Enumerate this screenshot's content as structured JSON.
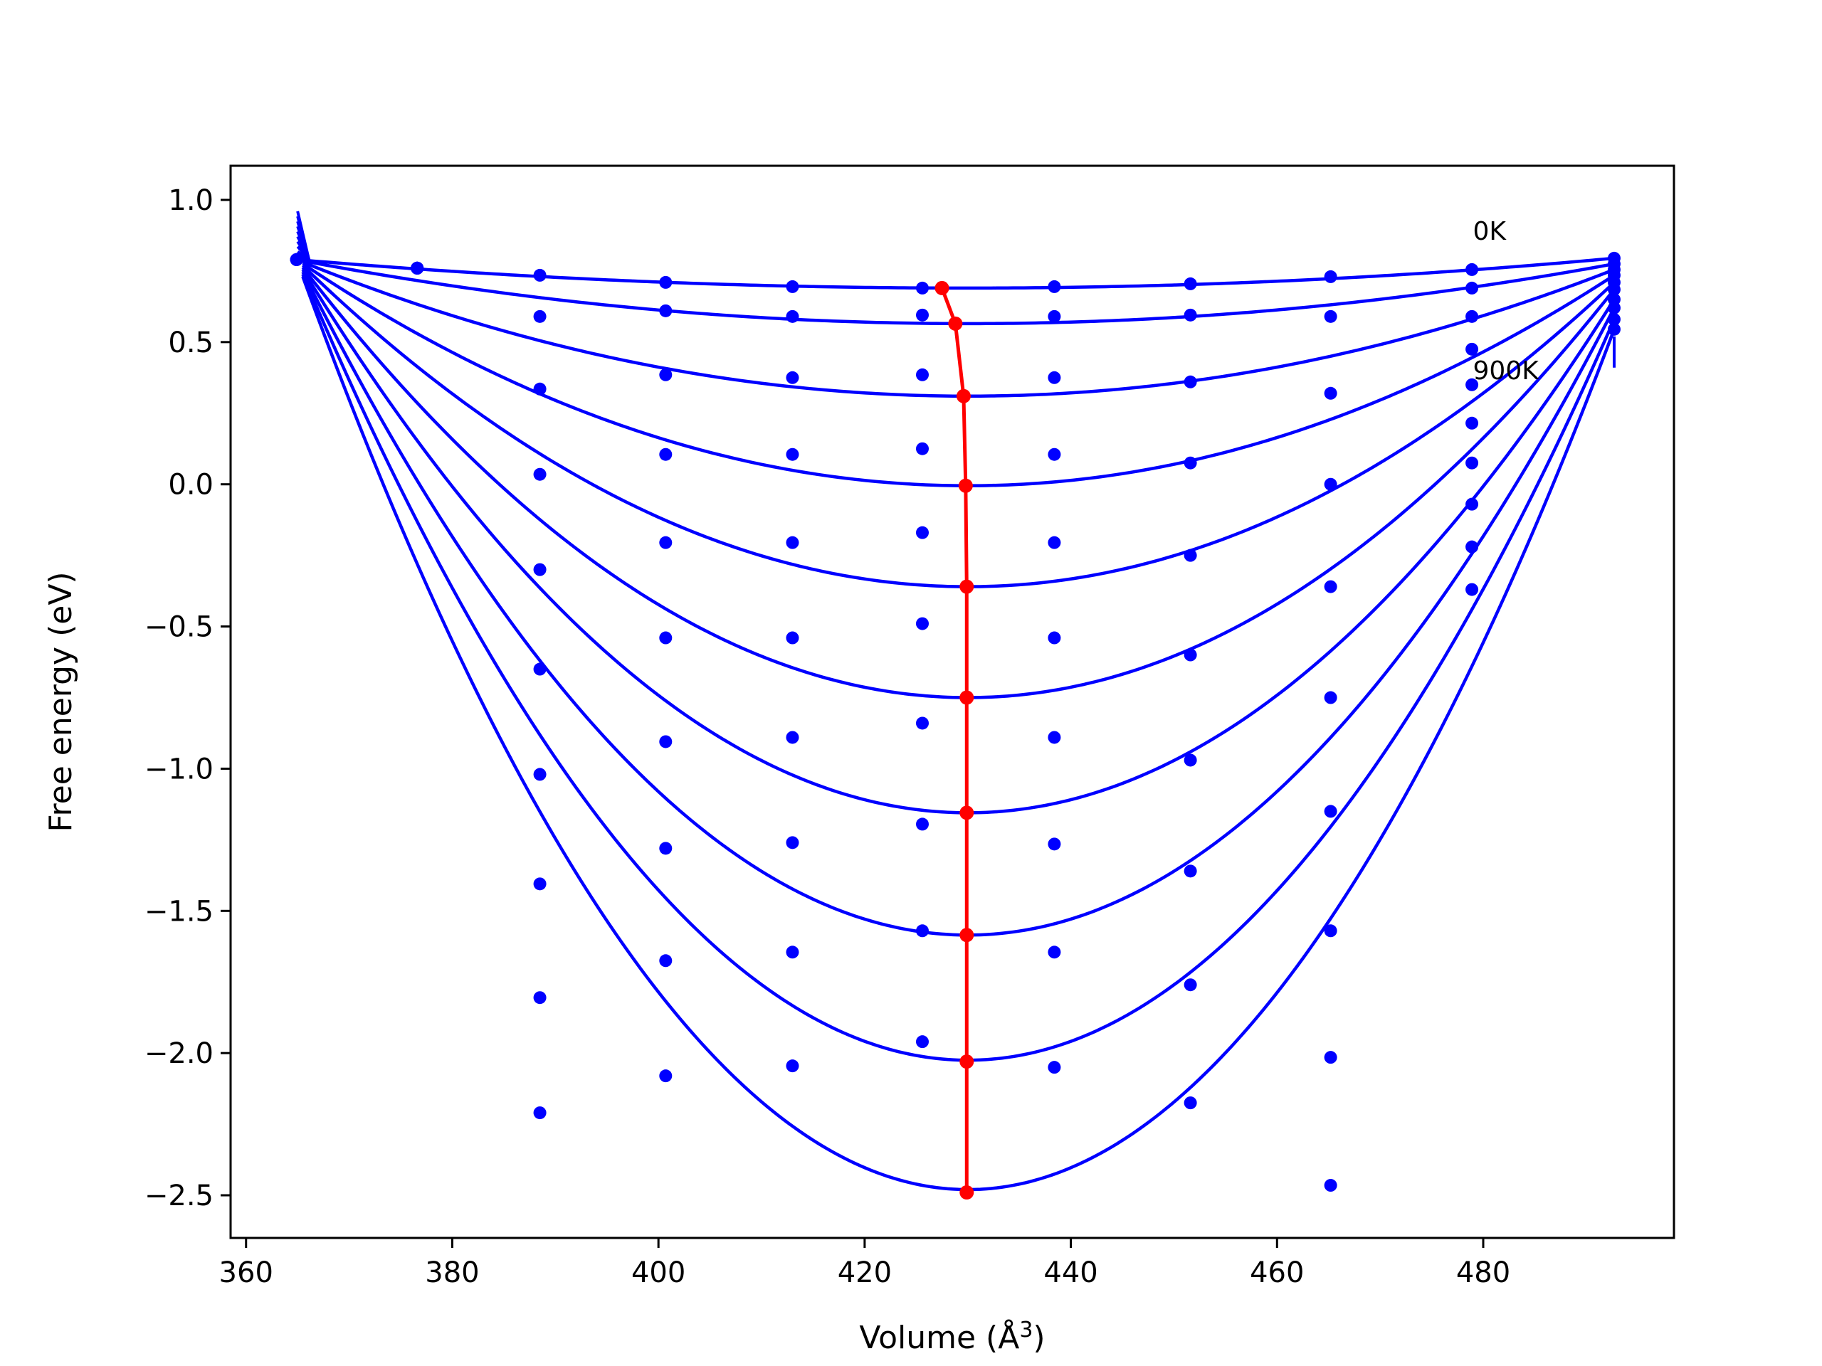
{
  "chart_data": {
    "type": "scatter",
    "xlabel": "Volume (Å",
    "xlabel_sup": "3",
    "xlabel_close": ")",
    "ylabel": "Free energy (eV)",
    "xlim": [
      358.5,
      498.5
    ],
    "ylim": [
      -2.65,
      1.12
    ],
    "xticks": [
      360,
      380,
      400,
      420,
      440,
      460,
      480
    ],
    "yticks": [
      1.0,
      0.5,
      0.0,
      -0.5,
      -1.0,
      -1.5,
      -2.0,
      -2.5
    ],
    "ytick_labels": [
      "1.0",
      "0.5",
      "0.0",
      "−0.5",
      "−1.0",
      "−1.5",
      "−2.0",
      "−2.5"
    ],
    "grid": false,
    "colors": {
      "curves": "#0000ff",
      "minimum_path": "#ff0000",
      "frame": "#000000"
    },
    "annotations": [
      {
        "text": "0K",
        "x": 479,
        "y": 0.86
      },
      {
        "text": "900K",
        "x": 479,
        "y": 0.37
      }
    ],
    "volumes": [
      364.9,
      376.6,
      388.5,
      400.7,
      413.0,
      425.6,
      438.4,
      451.6,
      465.2,
      478.9,
      492.7
    ],
    "series": [
      {
        "values": [
          0.79,
          0.76,
          0.735,
          0.71,
          0.695,
          0.69,
          0.695,
          0.705,
          0.73,
          0.755,
          0.795
        ],
        "fit_min": [
          430.0,
          0.69
        ],
        "fit_min_point": [
          427.5,
          0.69
        ]
      },
      {
        "values": [
          0.79,
          0.76,
          0.59,
          0.61,
          0.59,
          0.595,
          0.59,
          0.595,
          0.59,
          0.69,
          0.775
        ],
        "fit_min": [
          430.0,
          0.565
        ],
        "fit_min_point": [
          428.8,
          0.565
        ]
      },
      {
        "values": [
          0.79,
          0.76,
          0.335,
          0.385,
          0.375,
          0.385,
          0.375,
          0.36,
          0.32,
          0.59,
          0.755
        ],
        "fit_min": [
          430.0,
          0.31
        ],
        "fit_min_point": [
          429.6,
          0.31
        ]
      },
      {
        "values": [
          0.79,
          0.76,
          0.035,
          0.105,
          0.105,
          0.125,
          0.105,
          0.075,
          0.0,
          0.475,
          0.735
        ],
        "fit_min": [
          430.0,
          -0.005
        ],
        "fit_min_point": [
          429.8,
          -0.005
        ]
      },
      {
        "values": [
          0.79,
          0.76,
          -0.3,
          -0.205,
          -0.205,
          -0.17,
          -0.205,
          -0.25,
          -0.36,
          0.35,
          0.71
        ],
        "fit_min": [
          430.0,
          -0.36
        ],
        "fit_min_point": [
          429.9,
          -0.36
        ]
      },
      {
        "values": [
          0.79,
          0.76,
          -0.65,
          -0.54,
          -0.54,
          -0.49,
          -0.54,
          -0.6,
          -0.75,
          0.215,
          0.685
        ],
        "fit_min": [
          430.0,
          -0.75
        ],
        "fit_min_point": [
          429.9,
          -0.75
        ]
      },
      {
        "values": [
          0.79,
          0.76,
          -1.02,
          -0.905,
          -0.89,
          -0.84,
          -0.89,
          -0.97,
          -1.15,
          0.075,
          0.65
        ],
        "fit_min": [
          430.0,
          -1.155
        ],
        "fit_min_point": [
          429.9,
          -1.155
        ]
      },
      {
        "values": [
          0.79,
          0.76,
          -1.405,
          -1.28,
          -1.26,
          -1.195,
          -1.265,
          -1.36,
          -1.57,
          -0.07,
          0.62
        ],
        "fit_min": [
          430.0,
          -1.585
        ],
        "fit_min_point": [
          429.9,
          -1.585
        ]
      },
      {
        "values": [
          0.79,
          0.76,
          -1.805,
          -1.675,
          -1.645,
          -1.57,
          -1.645,
          -1.76,
          -2.015,
          -0.22,
          0.58
        ],
        "fit_min": [
          430.0,
          -2.025
        ],
        "fit_min_point": [
          429.9,
          -2.03
        ]
      },
      {
        "values": [
          0.79,
          0.76,
          -2.21,
          -2.08,
          -2.045,
          -1.96,
          -2.05,
          -2.175,
          -2.465,
          -0.37,
          0.545
        ],
        "fit_min": [
          430.0,
          -2.48
        ],
        "fit_min_point": [
          429.9,
          -2.49
        ]
      }
    ],
    "endpoints": {
      "left_top": [
        365.0,
        0.96
      ],
      "right_bottom": [
        492.7,
        0.41
      ]
    }
  }
}
